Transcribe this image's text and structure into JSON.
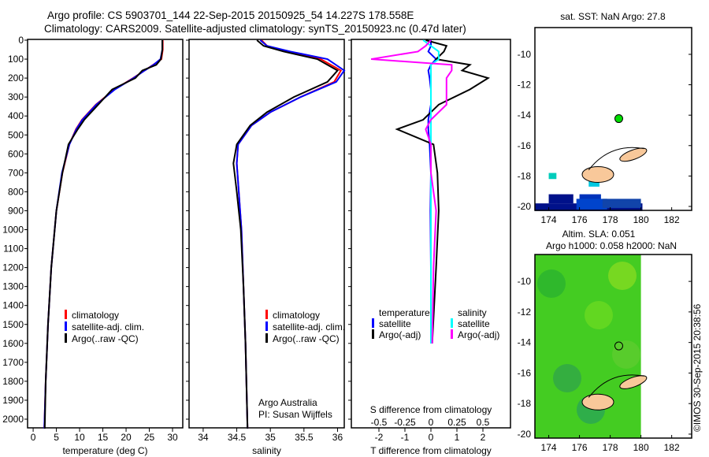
{
  "title_line1": "Argo profile: CS 5903701_144 22-Sep-2015 20150925_54 14.227S 178.558E",
  "title_line2": "Climatology: CARS2009. Satellite-adjusted climatology: synTS_20150923.nc (0.47d later)",
  "credit": "Argo Australia",
  "pi": "PI: Susan Wijffels",
  "timestamp": "©IMOS 30-Sep-2015 20:38:56",
  "colors": {
    "clim": "#ff0000",
    "sat": "#0000ff",
    "argo": "#000000",
    "sal_sat": "#00ffff",
    "sal_argo": "#ff00ff",
    "land": "#f8c89a",
    "float": "#00dd00"
  },
  "chart_data": [
    {
      "type": "line",
      "name": "temperature",
      "xlabel": "temperature (deg C)",
      "xlim": [
        -1.2,
        32.2
      ],
      "ylim": [
        0,
        2050
      ],
      "xticks": [
        0,
        5,
        10,
        15,
        20,
        25,
        30
      ],
      "yticks": [
        0,
        100,
        200,
        300,
        400,
        500,
        600,
        700,
        800,
        900,
        1000,
        1100,
        1200,
        1300,
        1400,
        1500,
        1600,
        1700,
        1800,
        1900,
        2000
      ],
      "legend": [
        "climatology",
        "satellite-adj. clim.",
        "Argo(..raw -QC)"
      ],
      "depth": [
        0,
        50,
        100,
        130,
        160,
        200,
        260,
        340,
        420,
        470,
        550,
        700,
        900,
        1200,
        1500,
        1800,
        2050
      ],
      "series": [
        {
          "name": "climatology",
          "values": [
            27.9,
            27.9,
            27.6,
            25.8,
            24,
            21.5,
            17.5,
            13.5,
            10.5,
            9.2,
            7.8,
            6.3,
            5,
            3.9,
            3.2,
            2.7,
            2.4
          ]
        },
        {
          "name": "satellite-adj. clim.",
          "values": [
            27.8,
            27.8,
            27.4,
            25.9,
            24,
            21.6,
            17.6,
            13.6,
            10.6,
            9.3,
            7.8,
            6.2,
            5,
            3.9,
            3.2,
            2.7,
            2.4
          ]
        },
        {
          "name": "Argo",
          "values": [
            27.8,
            27.8,
            27.5,
            26.5,
            23.5,
            22,
            17,
            14,
            11,
            9.6,
            7.6,
            6.3,
            5,
            3.9,
            3.2,
            2.7,
            2.5
          ]
        }
      ]
    },
    {
      "type": "line",
      "name": "salinity",
      "xlabel": "salinity",
      "xlim": [
        33.79,
        36.1
      ],
      "ylim": [
        0,
        2050
      ],
      "xticks": [
        34,
        34.5,
        35,
        35.5,
        36
      ],
      "legend": [
        "climatology",
        "satellite-adj. clim.",
        "Argo(..raw -QC)"
      ],
      "depth": [
        0,
        30,
        60,
        100,
        160,
        220,
        300,
        380,
        450,
        550,
        650,
        800,
        1000,
        1300,
        1600,
        2050
      ],
      "series": [
        {
          "name": "climatology",
          "values": [
            34.87,
            34.95,
            35.25,
            35.75,
            36.05,
            35.95,
            35.45,
            35.0,
            34.72,
            34.52,
            34.5,
            34.53,
            34.57,
            34.6,
            34.63,
            34.66
          ]
        },
        {
          "name": "satellite-adj. clim.",
          "values": [
            34.85,
            34.95,
            35.3,
            35.85,
            36.1,
            35.98,
            35.45,
            35.0,
            34.72,
            34.52,
            34.5,
            34.53,
            34.57,
            34.6,
            34.63,
            34.66
          ]
        },
        {
          "name": "Argo",
          "values": [
            34.8,
            34.9,
            35.2,
            35.7,
            36.0,
            35.85,
            35.35,
            34.95,
            34.7,
            34.5,
            34.45,
            34.5,
            34.56,
            34.6,
            34.63,
            34.66
          ]
        }
      ]
    },
    {
      "type": "line",
      "name": "difference",
      "xlabel": "T difference from climatology",
      "xlabel2": "S difference from climatology",
      "xlim": [
        -3.06,
        3.06
      ],
      "ylim": [
        0,
        2050
      ],
      "xticks": [
        -2,
        -1,
        0,
        1,
        2
      ],
      "xticks2": [
        "-0.5",
        "-0.25",
        "0",
        "0.25",
        "0.5"
      ],
      "legend_t": [
        "temperature",
        "satellite",
        "Argo(-adj)"
      ],
      "legend_s": [
        "salinity",
        "satellite",
        "Argo(-adj)"
      ],
      "depth": [
        0,
        30,
        60,
        100,
        130,
        160,
        200,
        260,
        340,
        420,
        470,
        550,
        700,
        900,
        1200,
        1600
      ],
      "series": [
        {
          "name": "T satellite",
          "values": [
            0,
            0,
            -0.1,
            0.2,
            0,
            -0.1,
            -0.05,
            0,
            0,
            -0.1,
            -0.1,
            -0.05,
            0,
            -0.02,
            0,
            0
          ]
        },
        {
          "name": "T Argo(-adj)",
          "values": [
            -0.2,
            0.6,
            0.5,
            0.2,
            1.5,
            1.2,
            2.2,
            1.5,
            0.3,
            -0.3,
            -1.3,
            0.1,
            0.25,
            0.3,
            0.2,
            0.05
          ]
        },
        {
          "name": "S satellite",
          "values": [
            -0.3,
            0,
            0.3,
            0.3,
            0,
            0,
            0,
            0,
            0,
            0,
            0,
            0,
            0,
            0,
            0,
            0
          ]
        },
        {
          "name": "S Argo(-adj)",
          "values": [
            0,
            -0.2,
            -0.5,
            -2.3,
            0.8,
            0.8,
            0.6,
            0.6,
            0.6,
            0,
            -0.2,
            0,
            0,
            0.2,
            0.1,
            0.05
          ]
        }
      ]
    },
    {
      "type": "map",
      "title": "sat. SST: NaN Argo: 27.8",
      "xticks": [
        174,
        176,
        178,
        180,
        182
      ],
      "yticks": [
        -10,
        -12,
        -14,
        -16,
        -18,
        -20
      ],
      "float": [
        178.558,
        -14.227
      ]
    },
    {
      "type": "map",
      "title1": "Altim. SLA: 0.051",
      "title2": "Argo h1000: 0.058 h2000: NaN",
      "xticks": [
        174,
        176,
        178,
        180,
        182
      ],
      "yticks": [
        -10,
        -12,
        -14,
        -16,
        -18,
        -20
      ],
      "float": [
        178.558,
        -14.227
      ]
    }
  ]
}
